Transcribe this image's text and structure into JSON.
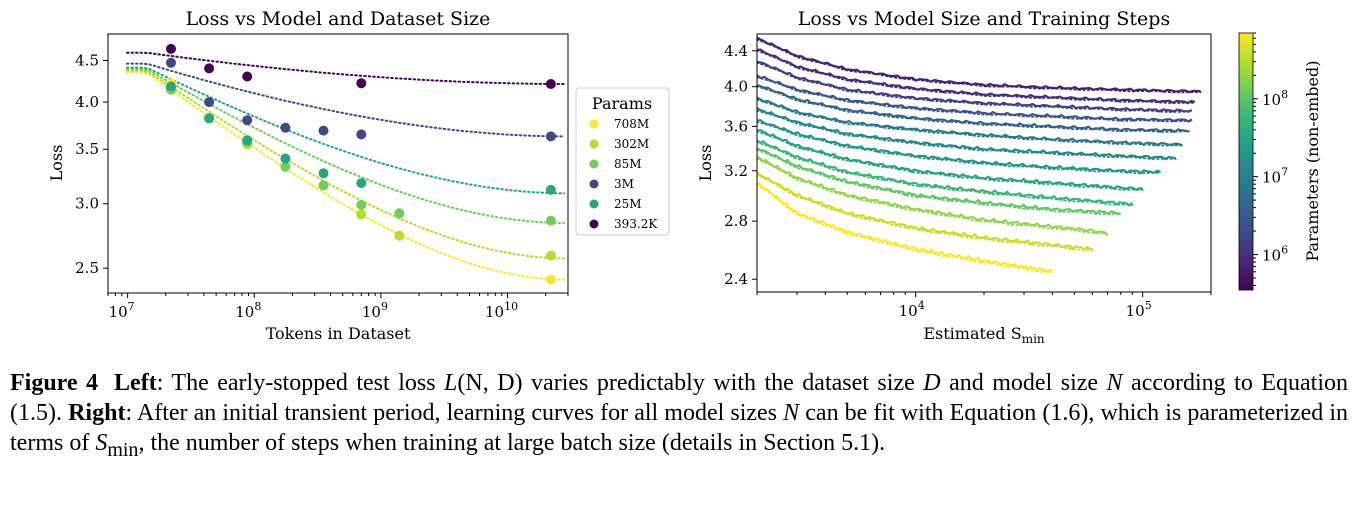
{
  "chart_data": [
    {
      "type": "scatter",
      "title": "Loss vs Model and Dataset Size",
      "xlabel": "Tokens in Dataset",
      "ylabel": "Loss",
      "xscale": "log",
      "yscale": "log",
      "xlim": [
        7000000,
        30000000000
      ],
      "ylim": [
        2.33,
        4.85
      ],
      "xticks": [
        {
          "v": 10000000,
          "b": "10",
          "e": "7"
        },
        {
          "v": 100000000,
          "b": "10",
          "e": "8"
        },
        {
          "v": 1000000000,
          "b": "10",
          "e": "9"
        },
        {
          "v": 10000000000,
          "b": "10",
          "e": "10"
        }
      ],
      "yticks": [
        {
          "v": 2.5,
          "label": "2.5"
        },
        {
          "v": 3.0,
          "label": "3.0"
        },
        {
          "v": 3.5,
          "label": "3.5"
        },
        {
          "v": 4.0,
          "label": "4.0"
        },
        {
          "v": 4.5,
          "label": "4.5"
        }
      ],
      "legend": {
        "title": "Params",
        "placement": "outside right"
      },
      "series": [
        {
          "name": "708M",
          "color": "#fde725",
          "x": [
            22000000,
            22000000000
          ],
          "y": [
            4.22,
            2.42
          ],
          "fit": [
            4.35,
            2.42
          ]
        },
        {
          "name": "302M",
          "color": "#b5de2b",
          "x": [
            22000000,
            88000000,
            700000000,
            1400000000,
            22000000000
          ],
          "y": [
            4.14,
            3.55,
            2.91,
            2.74,
            2.59
          ],
          "fit": [
            4.37,
            2.57
          ]
        },
        {
          "name": "85M",
          "color": "#6ece58",
          "x": [
            22000000,
            44000000,
            88000000,
            176000000,
            352000000,
            700000000,
            1400000000,
            22000000000
          ],
          "y": [
            4.15,
            3.82,
            3.57,
            3.33,
            3.16,
            2.99,
            2.92,
            2.86
          ],
          "fit": [
            4.39,
            2.84
          ]
        },
        {
          "name": "3M",
          "color": "#3e4989",
          "x": [
            22000000,
            44000000,
            88000000,
            176000000,
            352000000,
            700000000,
            22000000000
          ],
          "y": [
            4.47,
            4.0,
            3.8,
            3.72,
            3.69,
            3.65,
            3.63
          ],
          "fit": [
            4.46,
            3.63
          ]
        },
        {
          "name": "25M",
          "color": "#26a784",
          "x": [
            22000000,
            44000000,
            88000000,
            176000000,
            352000000,
            700000000,
            22000000000
          ],
          "y": [
            4.18,
            3.82,
            3.59,
            3.41,
            3.27,
            3.18,
            3.12
          ],
          "fit": [
            4.41,
            3.09
          ]
        },
        {
          "name": "393.2K",
          "color": "#440154",
          "x": [
            22000000,
            44000000,
            88000000,
            700000000,
            22000000000
          ],
          "y": [
            4.65,
            4.4,
            4.3,
            4.22,
            4.21
          ],
          "fit": [
            4.6,
            4.21
          ]
        }
      ]
    },
    {
      "type": "line",
      "title": "Loss vs Model Size and Training Steps",
      "xlabel": "Estimated S",
      "xlabel_sub": "min",
      "ylabel": "Loss",
      "xscale": "log",
      "yscale": "log",
      "xlim": [
        2000,
        200000
      ],
      "ylim": [
        2.32,
        4.6
      ],
      "xticks": [
        {
          "v": 10000,
          "b": "10",
          "e": "4"
        },
        {
          "v": 100000,
          "b": "10",
          "e": "5"
        }
      ],
      "yticks": [
        {
          "v": 2.4,
          "label": "2.4"
        },
        {
          "v": 2.8,
          "label": "2.8"
        },
        {
          "v": 3.2,
          "label": "3.2"
        },
        {
          "v": 3.6,
          "label": "3.6"
        },
        {
          "v": 4.0,
          "label": "4.0"
        },
        {
          "v": 4.4,
          "label": "4.4"
        }
      ],
      "colorbar": {
        "label": "Parameters (non-embed)",
        "scale": "log",
        "range": [
          350000,
          700000000
        ],
        "ticks": [
          {
            "v": 1000000,
            "b": "10",
            "e": "6"
          },
          {
            "v": 10000000,
            "b": "10",
            "e": "7"
          },
          {
            "v": 100000000,
            "b": "10",
            "e": "8"
          }
        ],
        "colors": [
          "#440154",
          "#482878",
          "#3e4989",
          "#31688e",
          "#26828e",
          "#1f9e89",
          "#35b779",
          "#6ece58",
          "#b5de2b",
          "#fde725"
        ]
      },
      "series": [
        {
          "color": "#fde725",
          "x": [
            2000,
            3000,
            5000,
            10000,
            20000,
            40000
          ],
          "y": [
            3.1,
            2.86,
            2.72,
            2.6,
            2.52,
            2.45
          ]
        },
        {
          "color": "#c8e020",
          "x": [
            2000,
            3000,
            5000,
            10000,
            20000,
            40000,
            60000
          ],
          "y": [
            3.18,
            3.0,
            2.86,
            2.75,
            2.68,
            2.63,
            2.6
          ]
        },
        {
          "color": "#90d743",
          "x": [
            2000,
            3000,
            5000,
            10000,
            20000,
            40000,
            60000,
            70000
          ],
          "y": [
            3.32,
            3.14,
            3.0,
            2.89,
            2.81,
            2.76,
            2.73,
            2.71
          ]
        },
        {
          "color": "#5ec962",
          "x": [
            2000,
            3000,
            5000,
            10000,
            20000,
            40000,
            80000
          ],
          "y": [
            3.4,
            3.24,
            3.11,
            3.0,
            2.94,
            2.89,
            2.86
          ]
        },
        {
          "color": "#35b779",
          "x": [
            2000,
            3000,
            5000,
            10000,
            20000,
            40000,
            90000
          ],
          "y": [
            3.47,
            3.32,
            3.19,
            3.09,
            3.03,
            2.98,
            2.93
          ]
        },
        {
          "color": "#21a585",
          "x": [
            2000,
            3000,
            5000,
            10000,
            20000,
            40000,
            80000,
            100000
          ],
          "y": [
            3.57,
            3.42,
            3.3,
            3.2,
            3.14,
            3.1,
            3.06,
            3.05
          ]
        },
        {
          "color": "#1f978b",
          "x": [
            2000,
            3000,
            5000,
            10000,
            20000,
            40000,
            80000,
            120000
          ],
          "y": [
            3.66,
            3.53,
            3.42,
            3.33,
            3.27,
            3.23,
            3.2,
            3.19
          ]
        },
        {
          "color": "#23898e",
          "x": [
            2000,
            3000,
            5000,
            10000,
            20000,
            40000,
            80000,
            140000
          ],
          "y": [
            3.77,
            3.64,
            3.53,
            3.45,
            3.39,
            3.36,
            3.33,
            3.31
          ]
        },
        {
          "color": "#2a788e",
          "x": [
            2000,
            3000,
            5000,
            10000,
            20000,
            40000,
            80000,
            150000
          ],
          "y": [
            3.88,
            3.74,
            3.64,
            3.57,
            3.52,
            3.48,
            3.45,
            3.43
          ]
        },
        {
          "color": "#33638d",
          "x": [
            2000,
            3000,
            5000,
            10000,
            20000,
            40000,
            80000,
            160000
          ],
          "y": [
            4.02,
            3.87,
            3.76,
            3.68,
            3.63,
            3.6,
            3.57,
            3.56
          ]
        },
        {
          "color": "#3b528b",
          "x": [
            2000,
            3000,
            5000,
            10000,
            20000,
            40000,
            80000,
            165000
          ],
          "y": [
            4.12,
            3.97,
            3.86,
            3.78,
            3.73,
            3.7,
            3.67,
            3.66
          ]
        },
        {
          "color": "#433e85",
          "x": [
            2000,
            3000,
            5000,
            10000,
            20000,
            40000,
            80000,
            165000
          ],
          "y": [
            4.28,
            4.1,
            3.97,
            3.88,
            3.83,
            3.8,
            3.77,
            3.75
          ]
        },
        {
          "color": "#472d7b",
          "x": [
            2000,
            3000,
            5000,
            10000,
            20000,
            40000,
            80000,
            170000
          ],
          "y": [
            4.42,
            4.22,
            4.08,
            3.98,
            3.92,
            3.89,
            3.86,
            3.84
          ]
        },
        {
          "color": "#482173",
          "x": [
            2000,
            3000,
            5000,
            10000,
            20000,
            40000,
            80000,
            180000
          ],
          "y": [
            4.55,
            4.34,
            4.19,
            4.08,
            4.02,
            3.99,
            3.97,
            3.95
          ]
        }
      ]
    }
  ],
  "caption": {
    "label": "Figure 4",
    "left_label": "Left",
    "left_text": ": The early-stopped test loss ",
    "math_L": "L",
    "math_args": "(N, D)",
    "left_text2": " varies predictably with the dataset size ",
    "math_D": "D",
    "left_text3": " and model size ",
    "math_N": "N",
    "left_text4": " according to Equation (1.5). ",
    "right_label": "Right",
    "right_text": ": After an initial transient period, learning curves for all model sizes ",
    "math_N2": "N",
    "right_text2": " can be fit with Equation (1.6), which is parameterized in terms of ",
    "math_S": "S",
    "math_S_sub": "min",
    "right_text3": ", the number of steps when training at large batch size (details in Section 5.1)."
  }
}
